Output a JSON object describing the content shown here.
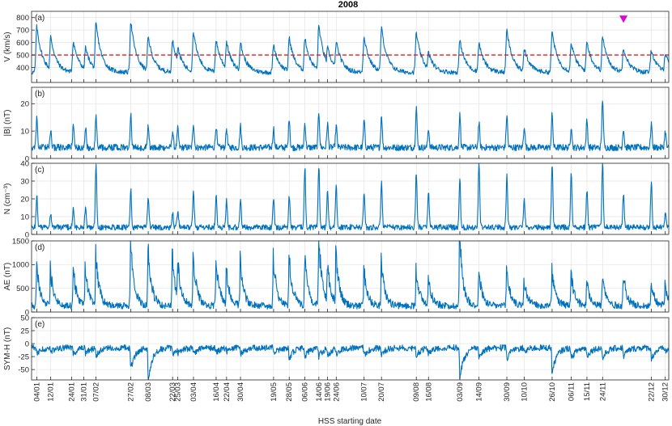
{
  "chart_data": {
    "type": "line",
    "title": "2008",
    "xlabel": "HSS starting date",
    "colors": {
      "series": "#0072BD",
      "threshold": "#E0201B",
      "marker": "#E000E0"
    },
    "grid": true,
    "x_range_days": [
      0,
      366
    ],
    "date_ticks": [
      {
        "label": "04/01",
        "day": 3
      },
      {
        "label": "12/01",
        "day": 11
      },
      {
        "label": "24/01",
        "day": 23
      },
      {
        "label": "31/01",
        "day": 30
      },
      {
        "label": "07/02",
        "day": 37
      },
      {
        "label": "27/02",
        "day": 57
      },
      {
        "label": "08/03",
        "day": 67
      },
      {
        "label": "22/03",
        "day": 81
      },
      {
        "label": "25/03",
        "day": 84
      },
      {
        "label": "03/04",
        "day": 93
      },
      {
        "label": "16/04",
        "day": 106
      },
      {
        "label": "22/04",
        "day": 112
      },
      {
        "label": "30/04",
        "day": 120
      },
      {
        "label": "19/05",
        "day": 139
      },
      {
        "label": "28/05",
        "day": 148
      },
      {
        "label": "06/06",
        "day": 157
      },
      {
        "label": "14/06",
        "day": 165
      },
      {
        "label": "19/06",
        "day": 170
      },
      {
        "label": "24/06",
        "day": 175
      },
      {
        "label": "10/07",
        "day": 191
      },
      {
        "label": "20/07",
        "day": 201
      },
      {
        "label": "09/08",
        "day": 221
      },
      {
        "label": "16/08",
        "day": 228
      },
      {
        "label": "03/09",
        "day": 246
      },
      {
        "label": "14/09",
        "day": 257
      },
      {
        "label": "30/09",
        "day": 273
      },
      {
        "label": "10/10",
        "day": 283
      },
      {
        "label": "26/10",
        "day": 299
      },
      {
        "label": "06/11",
        "day": 310
      },
      {
        "label": "15/11",
        "day": 319
      },
      {
        "label": "24/11",
        "day": 328
      },
      {
        "label": "22/12",
        "day": 356
      },
      {
        "label": "30/12",
        "day": 364
      }
    ],
    "marker": {
      "panel": "a",
      "day": 340,
      "value": 790
    },
    "panels": [
      {
        "id": "a",
        "label": "(a)",
        "ylabel": "V (km/s)",
        "ylim": [
          280,
          850
        ],
        "yticks": [
          400,
          500,
          600,
          700,
          800
        ],
        "threshold": 500,
        "base": 360,
        "noise": 18,
        "spike_shape": "hss",
        "spikes": [
          [
            3,
            730
          ],
          [
            11,
            650
          ],
          [
            24,
            610
          ],
          [
            31,
            560
          ],
          [
            37,
            760
          ],
          [
            57,
            770
          ],
          [
            67,
            650
          ],
          [
            81,
            620
          ],
          [
            84,
            560
          ],
          [
            93,
            690
          ],
          [
            106,
            620
          ],
          [
            112,
            610
          ],
          [
            120,
            600
          ],
          [
            139,
            580
          ],
          [
            148,
            640
          ],
          [
            157,
            640
          ],
          [
            165,
            740
          ],
          [
            170,
            560
          ],
          [
            175,
            610
          ],
          [
            191,
            650
          ],
          [
            201,
            720
          ],
          [
            221,
            680
          ],
          [
            228,
            520
          ],
          [
            246,
            620
          ],
          [
            257,
            600
          ],
          [
            273,
            700
          ],
          [
            283,
            560
          ],
          [
            299,
            690
          ],
          [
            310,
            600
          ],
          [
            319,
            610
          ],
          [
            328,
            650
          ],
          [
            340,
            560
          ],
          [
            356,
            540
          ],
          [
            364,
            520
          ]
        ],
        "min": 285
      },
      {
        "id": "b",
        "label": "(b)",
        "ylabel": "|B| (nT)",
        "ylim": [
          0,
          26
        ],
        "yticks": [
          0,
          10,
          20
        ],
        "base": 4,
        "noise": 1.2,
        "spike_shape": "short",
        "spikes": [
          [
            3,
            15
          ],
          [
            11,
            11
          ],
          [
            24,
            12
          ],
          [
            31,
            11
          ],
          [
            37,
            16
          ],
          [
            57,
            16
          ],
          [
            67,
            12
          ],
          [
            81,
            10
          ],
          [
            84,
            11
          ],
          [
            93,
            13
          ],
          [
            106,
            12
          ],
          [
            112,
            11
          ],
          [
            120,
            12
          ],
          [
            139,
            11
          ],
          [
            148,
            15
          ],
          [
            157,
            13
          ],
          [
            165,
            17
          ],
          [
            170,
            13
          ],
          [
            175,
            12
          ],
          [
            191,
            14
          ],
          [
            201,
            16
          ],
          [
            221,
            19
          ],
          [
            228,
            11
          ],
          [
            246,
            16
          ],
          [
            257,
            13
          ],
          [
            273,
            16
          ],
          [
            283,
            12
          ],
          [
            299,
            16
          ],
          [
            310,
            12
          ],
          [
            319,
            14
          ],
          [
            328,
            22
          ],
          [
            340,
            11
          ],
          [
            356,
            13
          ],
          [
            364,
            10
          ]
        ],
        "min": 1
      },
      {
        "id": "c",
        "label": "(c)",
        "ylabel": "N (cm⁻³)",
        "ylim": [
          0,
          40
        ],
        "yticks": [
          0,
          10,
          20,
          30,
          40
        ],
        "base": 4,
        "noise": 1.6,
        "spike_shape": "short",
        "spikes": [
          [
            3,
            22
          ],
          [
            11,
            12
          ],
          [
            24,
            14
          ],
          [
            31,
            15
          ],
          [
            37,
            39
          ],
          [
            57,
            25
          ],
          [
            67,
            21
          ],
          [
            81,
            13
          ],
          [
            84,
            14
          ],
          [
            93,
            25
          ],
          [
            106,
            22
          ],
          [
            112,
            19
          ],
          [
            120,
            20
          ],
          [
            139,
            20
          ],
          [
            148,
            22
          ],
          [
            157,
            38
          ],
          [
            165,
            39
          ],
          [
            170,
            25
          ],
          [
            175,
            27
          ],
          [
            191,
            24
          ],
          [
            201,
            30
          ],
          [
            221,
            35
          ],
          [
            228,
            25
          ],
          [
            246,
            31
          ],
          [
            257,
            40
          ],
          [
            273,
            33
          ],
          [
            283,
            20
          ],
          [
            299,
            40
          ],
          [
            310,
            35
          ],
          [
            319,
            25
          ],
          [
            328,
            40
          ],
          [
            340,
            22
          ],
          [
            356,
            29
          ],
          [
            364,
            12
          ]
        ],
        "min": 0.5
      },
      {
        "id": "d",
        "label": "(d)",
        "ylabel": "AE (nT)",
        "ylim": [
          0,
          1500
        ],
        "yticks": [
          0,
          500,
          1000,
          1500
        ],
        "base": 60,
        "noise": 140,
        "spike_shape": "burst",
        "spikes": [
          [
            3,
            800
          ],
          [
            11,
            650
          ],
          [
            24,
            700
          ],
          [
            31,
            650
          ],
          [
            37,
            900
          ],
          [
            57,
            1150
          ],
          [
            67,
            1100
          ],
          [
            81,
            900
          ],
          [
            84,
            850
          ],
          [
            93,
            900
          ],
          [
            106,
            850
          ],
          [
            112,
            700
          ],
          [
            120,
            800
          ],
          [
            139,
            850
          ],
          [
            148,
            950
          ],
          [
            157,
            850
          ],
          [
            165,
            1250
          ],
          [
            170,
            800
          ],
          [
            175,
            900
          ],
          [
            191,
            700
          ],
          [
            201,
            800
          ],
          [
            221,
            700
          ],
          [
            228,
            550
          ],
          [
            246,
            1250
          ],
          [
            257,
            650
          ],
          [
            273,
            700
          ],
          [
            283,
            500
          ],
          [
            299,
            650
          ],
          [
            310,
            600
          ],
          [
            319,
            500
          ],
          [
            328,
            550
          ],
          [
            340,
            600
          ],
          [
            356,
            450
          ],
          [
            364,
            400
          ]
        ],
        "min": 0
      },
      {
        "id": "e",
        "label": "(e)",
        "ylabel": "SYM-H (nT)",
        "ylim": [
          -70,
          50
        ],
        "yticks": [
          -50,
          -25,
          0,
          25,
          50
        ],
        "base": -8,
        "noise": 6,
        "spike_shape": "storm",
        "spikes": [
          [
            3,
            -22
          ],
          [
            11,
            -15
          ],
          [
            24,
            -20
          ],
          [
            31,
            -20
          ],
          [
            37,
            -25
          ],
          [
            57,
            -50
          ],
          [
            67,
            -70
          ],
          [
            81,
            -20
          ],
          [
            84,
            -20
          ],
          [
            93,
            -20
          ],
          [
            106,
            -18
          ],
          [
            112,
            -15
          ],
          [
            120,
            -20
          ],
          [
            139,
            -20
          ],
          [
            148,
            -30
          ],
          [
            157,
            -25
          ],
          [
            165,
            -25
          ],
          [
            170,
            -25
          ],
          [
            175,
            -20
          ],
          [
            191,
            -25
          ],
          [
            201,
            -20
          ],
          [
            221,
            -25
          ],
          [
            228,
            -20
          ],
          [
            246,
            -65
          ],
          [
            257,
            -25
          ],
          [
            273,
            -30
          ],
          [
            283,
            -15
          ],
          [
            299,
            -58
          ],
          [
            310,
            -30
          ],
          [
            319,
            -25
          ],
          [
            328,
            -30
          ],
          [
            340,
            -25
          ],
          [
            356,
            -30
          ],
          [
            364,
            -15
          ]
        ],
        "min": -70
      }
    ]
  }
}
